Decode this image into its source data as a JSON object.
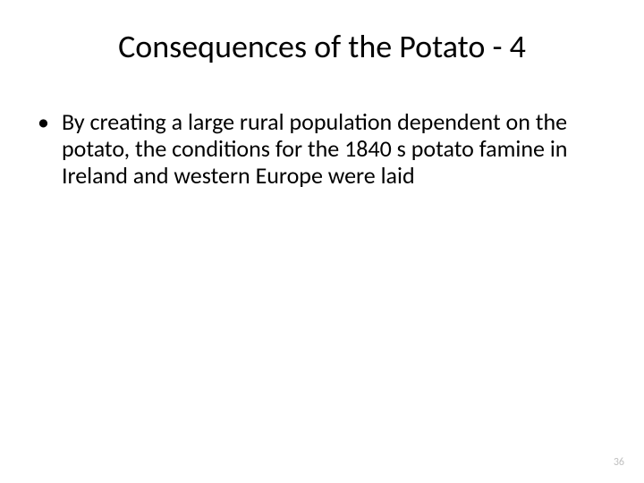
{
  "title": "Consequences of the Potato - 4",
  "bullets": [
    {
      "text": "By creating a large rural population dependent on the potato, the conditions for the 1840 s potato famine in Ireland and western Europe were laid"
    }
  ],
  "pageNumber": "36",
  "styling": {
    "background_color": "#ffffff",
    "title_fontsize": 36,
    "title_color": "#000000",
    "body_fontsize": 26,
    "body_color": "#000000",
    "page_number_fontsize": 12,
    "page_number_color": "#bfbfbf",
    "font_family": "Calibri"
  }
}
